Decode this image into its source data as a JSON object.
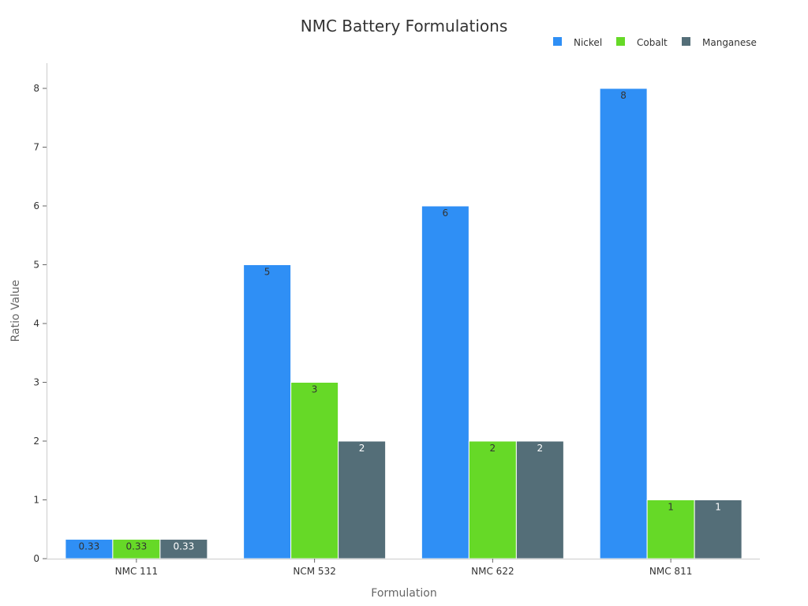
{
  "chart_data": {
    "type": "bar",
    "title": "NMC Battery Formulations",
    "xlabel": "Formulation",
    "ylabel": "Ratio Value",
    "categories": [
      "NMC 111",
      "NCM 532",
      "NMC 622",
      "NMC 811"
    ],
    "series": [
      {
        "name": "Nickel",
        "color": "#2f8ff5",
        "values": [
          0.33,
          5,
          6,
          8
        ],
        "labels": [
          "0.33",
          "5",
          "6",
          "8"
        ],
        "label_color": "#333333"
      },
      {
        "name": "Cobalt",
        "color": "#66d927",
        "values": [
          0.33,
          3,
          2,
          1
        ],
        "labels": [
          "0.33",
          "3",
          "2",
          "1"
        ],
        "label_color": "#333333"
      },
      {
        "name": "Manganese",
        "color": "#546e78",
        "values": [
          0.33,
          2,
          2,
          1
        ],
        "labels": [
          "0.33",
          "2",
          "2",
          "1"
        ],
        "label_color": "#ffffff"
      }
    ],
    "ylim": [
      0,
      8.4
    ],
    "yticks": [
      "0",
      "1",
      "2",
      "3",
      "4",
      "5",
      "6",
      "7",
      "8"
    ],
    "grid": false,
    "legend_position": "top-right"
  }
}
